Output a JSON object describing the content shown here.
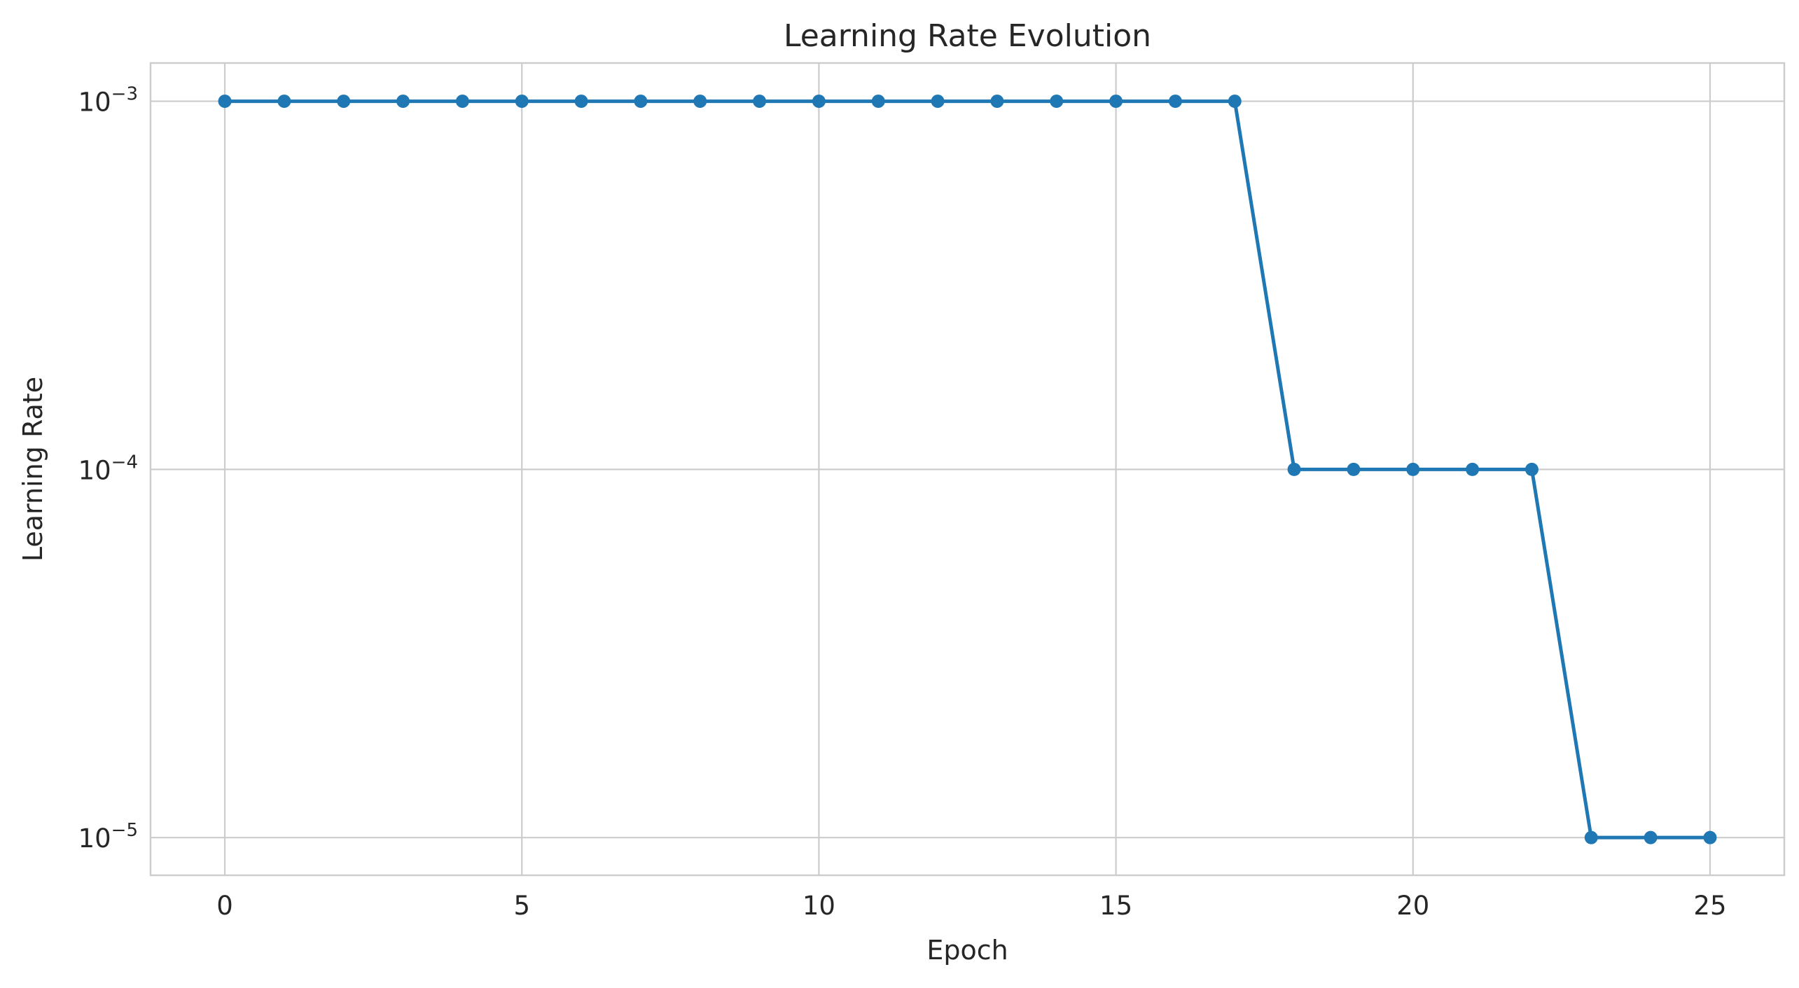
{
  "chart_data": {
    "type": "line",
    "title": "Learning Rate Evolution",
    "xlabel": "Epoch",
    "ylabel": "Learning Rate",
    "yscale": "log",
    "grid": true,
    "legend": "none",
    "xlim": [
      -1.25,
      26.25
    ],
    "ylim": [
      7.9e-06,
      0.00127
    ],
    "x_ticks": [
      0,
      5,
      10,
      15,
      20,
      25
    ],
    "y_ticks": [
      {
        "value": 0.001,
        "base": "10",
        "exp": "−3"
      },
      {
        "value": 0.0001,
        "base": "10",
        "exp": "−4"
      },
      {
        "value": 1e-05,
        "base": "10",
        "exp": "−5"
      }
    ],
    "series": [
      {
        "color": "#1f77b4",
        "marker": "circle",
        "x": [
          0,
          1,
          2,
          3,
          4,
          5,
          6,
          7,
          8,
          9,
          10,
          11,
          12,
          13,
          14,
          15,
          16,
          17,
          18,
          19,
          20,
          21,
          22,
          23,
          24,
          25
        ],
        "values": [
          0.001,
          0.001,
          0.001,
          0.001,
          0.001,
          0.001,
          0.001,
          0.001,
          0.001,
          0.001,
          0.001,
          0.001,
          0.001,
          0.001,
          0.001,
          0.001,
          0.001,
          0.001,
          0.0001,
          0.0001,
          0.0001,
          0.0001,
          0.0001,
          1e-05,
          1e-05,
          1e-05
        ]
      }
    ],
    "colors": {
      "grid": "#cccccc",
      "axes": "#cccccc",
      "text": "#262626",
      "background": "#ffffff"
    }
  }
}
